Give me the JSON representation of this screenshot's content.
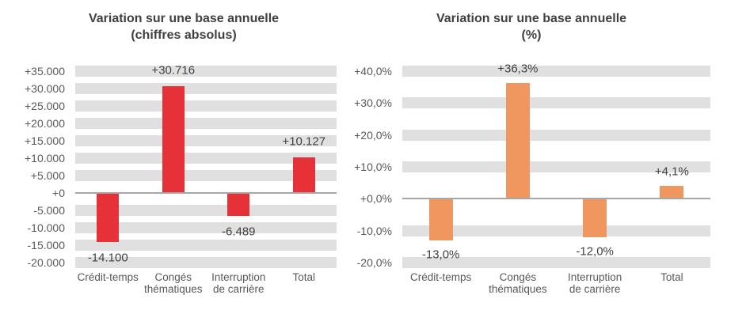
{
  "page": {
    "background": "#FFFFFF"
  },
  "colors": {
    "band": "#E0E0E0",
    "axis_line": "#A6A6A6",
    "title_text": "#404040",
    "tick_text": "#595959",
    "data_label_text": "#404040"
  },
  "chart_data": [
    {
      "type": "bar",
      "title": "Variation sur une base annuelle (chiffres absolus)",
      "title_lines": [
        "Variation sur une base annuelle",
        "(chiffres absolus)"
      ],
      "categories": [
        "Crédit-temps",
        "Congés thématiques",
        "Interruption de carrière",
        "Total"
      ],
      "category_lines": [
        [
          "Crédit-temps"
        ],
        [
          "Congés",
          "thématiques"
        ],
        [
          "Interruption",
          "de carrière"
        ],
        [
          "Total"
        ]
      ],
      "values": [
        -14100,
        30716,
        -6489,
        10127
      ],
      "data_labels": [
        "-14.100",
        "+30.716",
        "-6.489",
        "+10.127"
      ],
      "ylim": [
        -20000,
        35000
      ],
      "ytick_step": 5000,
      "ytick_labels": [
        "+35.000",
        "+30.000",
        "+25.000",
        "+20.000",
        "+15.000",
        "+10.000",
        "+5.000",
        "+0",
        "-5.000",
        "-10.000",
        "-15.000",
        "-20.000"
      ],
      "bar_color": "#E73138",
      "grid": "horizontal-bands",
      "band_color": "#E0E0E0",
      "axis_line_color": "#A6A6A6",
      "legend": "none",
      "xlabel": "",
      "ylabel": ""
    },
    {
      "type": "bar",
      "title": "Variation sur une base annuelle (%)",
      "title_lines": [
        "Variation sur une base annuelle",
        "(%)"
      ],
      "categories": [
        "Crédit-temps",
        "Congés thématiques",
        "Interruption de carrière",
        "Total"
      ],
      "category_lines": [
        [
          "Crédit-temps"
        ],
        [
          "Congés",
          "thématiques"
        ],
        [
          "Interruption",
          "de carrière"
        ],
        [
          "Total"
        ]
      ],
      "values": [
        -13.0,
        36.3,
        -12.0,
        4.1
      ],
      "data_labels": [
        "-13,0%",
        "+36,3%",
        "-12,0%",
        "+4,1%"
      ],
      "ylim": [
        -20,
        40
      ],
      "ytick_step": 10,
      "ytick_labels": [
        "+40,0%",
        "+30,0%",
        "+20,0%",
        "+10,0%",
        "+0,0%",
        "-10,0%",
        "-20,0%"
      ],
      "bar_color": "#F0975F",
      "grid": "horizontal-bands",
      "band_color": "#E0E0E0",
      "axis_line_color": "#A6A6A6",
      "legend": "none",
      "xlabel": "",
      "ylabel": ""
    }
  ]
}
